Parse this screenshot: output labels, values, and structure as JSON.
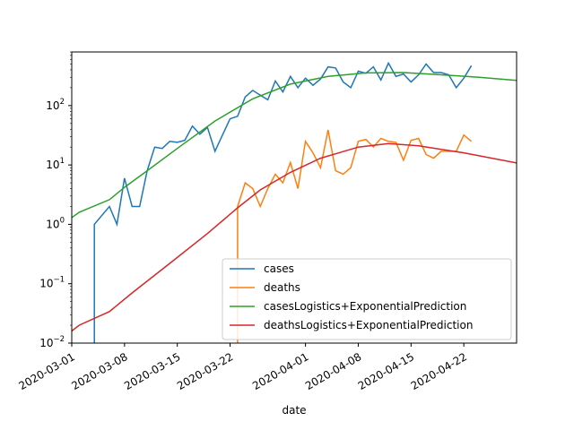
{
  "chart_data": {
    "type": "line",
    "title": "",
    "xlabel": "date",
    "ylabel": "",
    "yscale": "log",
    "ylim": [
      0.01,
      800
    ],
    "xlim": [
      "2020-03-01",
      "2020-04-29"
    ],
    "grid": false,
    "legend_position": "lower-right",
    "x_ticks": [
      "2020-03-01",
      "2020-03-08",
      "2020-03-15",
      "2020-03-22",
      "2020-04-01",
      "2020-04-08",
      "2020-04-15",
      "2020-04-22"
    ],
    "y_ticks": [
      {
        "value": 0.01,
        "base": "10",
        "exp": "−2"
      },
      {
        "value": 0.1,
        "base": "10",
        "exp": "−1"
      },
      {
        "value": 1,
        "base": "10",
        "exp": "0"
      },
      {
        "value": 10,
        "base": "10",
        "exp": "1"
      },
      {
        "value": 100,
        "base": "10",
        "exp": "2"
      }
    ],
    "series": [
      {
        "name": "cases",
        "color": "#1f77b4",
        "points": [
          [
            "2020-03-04",
            0.005
          ],
          [
            "2020-03-04",
            1
          ],
          [
            "2020-03-06",
            2
          ],
          [
            "2020-03-07",
            1
          ],
          [
            "2020-03-08",
            6
          ],
          [
            "2020-03-09",
            2
          ],
          [
            "2020-03-10",
            2
          ],
          [
            "2020-03-11",
            8
          ],
          [
            "2020-03-12",
            20
          ],
          [
            "2020-03-13",
            19
          ],
          [
            "2020-03-14",
            25
          ],
          [
            "2020-03-15",
            24
          ],
          [
            "2020-03-16",
            26
          ],
          [
            "2020-03-17",
            45
          ],
          [
            "2020-03-18",
            33
          ],
          [
            "2020-03-19",
            43
          ],
          [
            "2020-03-20",
            17
          ],
          [
            "2020-03-21",
            32
          ],
          [
            "2020-03-22",
            60
          ],
          [
            "2020-03-23",
            66
          ],
          [
            "2020-03-24",
            140
          ],
          [
            "2020-03-25",
            180
          ],
          [
            "2020-03-26",
            150
          ],
          [
            "2020-03-27",
            125
          ],
          [
            "2020-03-28",
            260
          ],
          [
            "2020-03-29",
            170
          ],
          [
            "2020-03-30",
            310
          ],
          [
            "2020-03-31",
            200
          ],
          [
            "2020-04-01",
            290
          ],
          [
            "2020-04-02",
            220
          ],
          [
            "2020-04-03",
            280
          ],
          [
            "2020-04-04",
            450
          ],
          [
            "2020-04-05",
            430
          ],
          [
            "2020-04-06",
            250
          ],
          [
            "2020-04-07",
            200
          ],
          [
            "2020-04-08",
            380
          ],
          [
            "2020-04-09",
            350
          ],
          [
            "2020-04-10",
            450
          ],
          [
            "2020-04-11",
            270
          ],
          [
            "2020-04-12",
            520
          ],
          [
            "2020-04-13",
            310
          ],
          [
            "2020-04-14",
            340
          ],
          [
            "2020-04-15",
            250
          ],
          [
            "2020-04-16",
            330
          ],
          [
            "2020-04-17",
            500
          ],
          [
            "2020-04-18",
            360
          ],
          [
            "2020-04-19",
            360
          ],
          [
            "2020-04-20",
            330
          ],
          [
            "2020-04-21",
            200
          ],
          [
            "2020-04-22",
            290
          ],
          [
            "2020-04-23",
            470
          ]
        ]
      },
      {
        "name": "deaths",
        "color": "#ff7f0e",
        "points": [
          [
            "2020-03-23",
            0.005
          ],
          [
            "2020-03-23",
            2
          ],
          [
            "2020-03-24",
            5
          ],
          [
            "2020-03-25",
            4
          ],
          [
            "2020-03-26",
            2
          ],
          [
            "2020-03-27",
            4
          ],
          [
            "2020-03-28",
            7
          ],
          [
            "2020-03-29",
            5
          ],
          [
            "2020-03-30",
            11
          ],
          [
            "2020-03-31",
            4
          ],
          [
            "2020-04-01",
            25
          ],
          [
            "2020-04-02",
            16
          ],
          [
            "2020-04-03",
            9
          ],
          [
            "2020-04-04",
            39
          ],
          [
            "2020-04-05",
            8
          ],
          [
            "2020-04-06",
            7
          ],
          [
            "2020-04-07",
            9
          ],
          [
            "2020-04-08",
            25
          ],
          [
            "2020-04-09",
            27
          ],
          [
            "2020-04-10",
            20
          ],
          [
            "2020-04-11",
            28
          ],
          [
            "2020-04-12",
            25
          ],
          [
            "2020-04-13",
            24
          ],
          [
            "2020-04-14",
            12
          ],
          [
            "2020-04-15",
            26
          ],
          [
            "2020-04-16",
            28
          ],
          [
            "2020-04-17",
            15
          ],
          [
            "2020-04-18",
            13
          ],
          [
            "2020-04-19",
            17
          ],
          [
            "2020-04-20",
            17
          ],
          [
            "2020-04-21",
            17
          ],
          [
            "2020-04-22",
            32
          ],
          [
            "2020-04-23",
            25
          ]
        ]
      },
      {
        "name": "casesLogistics+ExponentialPrediction",
        "color": "#2ca02c",
        "points": [
          [
            "2020-03-01",
            1.3
          ],
          [
            "2020-03-02",
            1.6
          ],
          [
            "2020-03-06",
            2.6
          ],
          [
            "2020-03-08",
            4.2
          ],
          [
            "2020-03-11",
            8
          ],
          [
            "2020-03-15",
            19
          ],
          [
            "2020-03-20",
            55
          ],
          [
            "2020-03-25",
            130
          ],
          [
            "2020-03-30",
            230
          ],
          [
            "2020-04-04",
            310
          ],
          [
            "2020-04-09",
            355
          ],
          [
            "2020-04-14",
            360
          ],
          [
            "2020-04-19",
            330
          ],
          [
            "2020-04-24",
            300
          ],
          [
            "2020-04-29",
            265
          ]
        ]
      },
      {
        "name": "deathsLogistics+ExponentialPrediction",
        "color": "#d62728",
        "points": [
          [
            "2020-03-01",
            0.016
          ],
          [
            "2020-03-02",
            0.02
          ],
          [
            "2020-03-06",
            0.034
          ],
          [
            "2020-03-09",
            0.07
          ],
          [
            "2020-03-14",
            0.22
          ],
          [
            "2020-03-19",
            0.7
          ],
          [
            "2020-03-23",
            1.9
          ],
          [
            "2020-03-26",
            3.8
          ],
          [
            "2020-03-30",
            7.5
          ],
          [
            "2020-04-03",
            13
          ],
          [
            "2020-04-08",
            20
          ],
          [
            "2020-04-12",
            23
          ],
          [
            "2020-04-16",
            21
          ],
          [
            "2020-04-22",
            16
          ],
          [
            "2020-04-29",
            10.8
          ]
        ]
      }
    ]
  }
}
